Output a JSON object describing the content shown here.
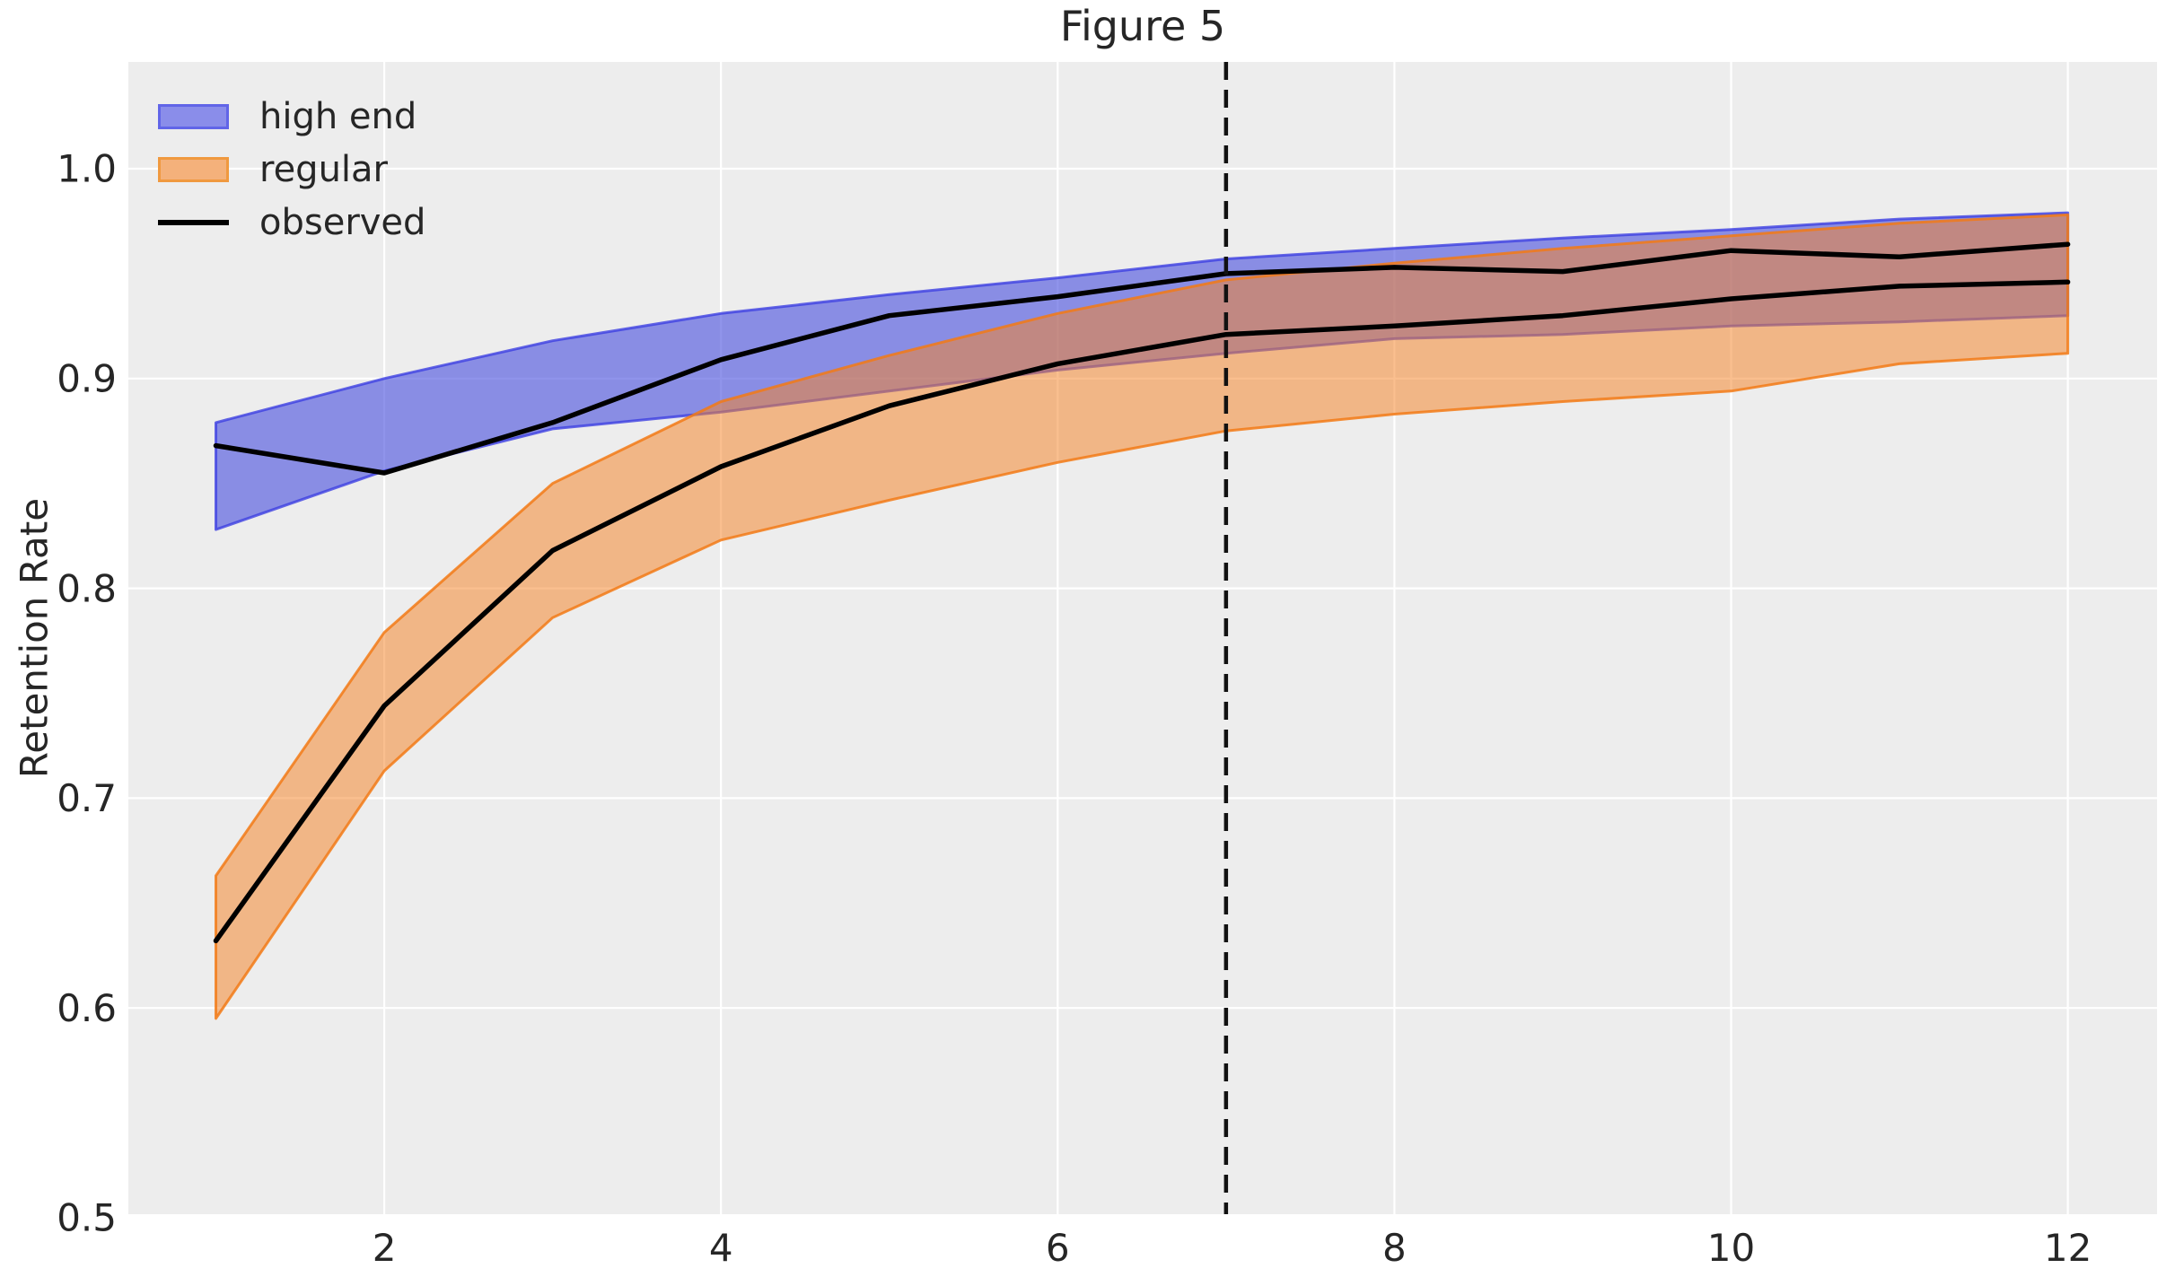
{
  "figure": {
    "title": "Figure 5",
    "ylabel": "Retention Rate"
  },
  "legend": {
    "position": "upper left",
    "items": [
      {
        "label": "high end",
        "type": "patch",
        "fill": "#8A8DEA",
        "border": "#6165E8"
      },
      {
        "label": "regular",
        "type": "patch",
        "fill": "#F4B17B",
        "border": "#F0993F"
      },
      {
        "label": "observed",
        "type": "line",
        "color": "#000000"
      }
    ]
  },
  "chart_data": {
    "type": "area",
    "title": "Figure 5",
    "xlabel": "",
    "ylabel": "Retention Rate",
    "x": [
      1,
      2,
      3,
      4,
      5,
      6,
      7,
      8,
      9,
      10,
      11,
      12
    ],
    "series": [
      {
        "name": "high end",
        "kind": "band",
        "upper": [
          0.879,
          0.9,
          0.918,
          0.931,
          0.94,
          0.948,
          0.957,
          0.962,
          0.967,
          0.971,
          0.976,
          0.979
        ],
        "lower": [
          0.828,
          0.856,
          0.876,
          0.884,
          0.894,
          0.904,
          0.912,
          0.919,
          0.921,
          0.925,
          0.927,
          0.93
        ],
        "fill": "rgba(70,76,222,0.60)",
        "edge": "rgba(58,60,226,0.78)"
      },
      {
        "name": "regular",
        "kind": "band",
        "upper": [
          0.663,
          0.779,
          0.85,
          0.889,
          0.911,
          0.931,
          0.947,
          0.955,
          0.962,
          0.968,
          0.974,
          0.978
        ],
        "lower": [
          0.595,
          0.713,
          0.786,
          0.823,
          0.842,
          0.86,
          0.875,
          0.883,
          0.889,
          0.894,
          0.907,
          0.912
        ],
        "fill": "rgba(246,132,40,0.52)",
        "edge": "rgba(242,122,22,0.85)"
      },
      {
        "name": "observed (high end)",
        "kind": "line",
        "values": [
          0.868,
          0.855,
          0.879,
          0.909,
          0.93,
          0.939,
          0.95,
          0.953,
          0.951,
          0.961,
          0.958,
          0.964
        ],
        "color": "#000000",
        "width": 5.5
      },
      {
        "name": "observed (regular)",
        "kind": "line",
        "values": [
          0.632,
          0.744,
          0.818,
          0.858,
          0.887,
          0.907,
          0.921,
          0.925,
          0.93,
          0.938,
          0.944,
          0.946
        ],
        "color": "#000000",
        "width": 5.5
      }
    ],
    "vline": {
      "x": 7,
      "style": "dashed",
      "color": "#111111",
      "width": 4.5,
      "dash": [
        20,
        11
      ]
    },
    "xticks": {
      "values": [
        2,
        4,
        6,
        8,
        10,
        12
      ],
      "labels": [
        "2",
        "4",
        "6",
        "8",
        "10",
        "12"
      ]
    },
    "yticks": {
      "values": [
        0.5,
        0.6,
        0.7,
        0.8,
        0.9,
        1.0
      ],
      "labels": [
        "0.5",
        "0.6",
        "0.7",
        "0.8",
        "0.9",
        "1.0"
      ]
    },
    "xlim": [
      0.48,
      12.53
    ],
    "ylim": [
      0.5017,
      1.0509
    ],
    "grid": true,
    "plot_bg": "#EDEDED",
    "grid_color": "#FFFFFF",
    "text_color": "#262626",
    "tick_fontsize": 42
  }
}
